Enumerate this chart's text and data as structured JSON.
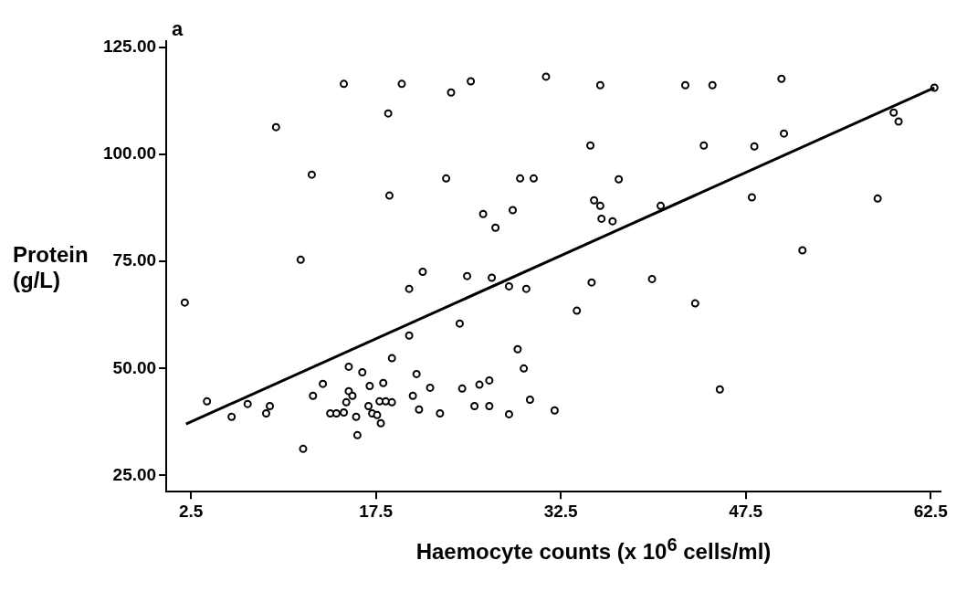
{
  "chart_data": {
    "type": "scatter",
    "xlabel": "Haemocyte counts (x 10$^{6}$  cells/ml)",
    "ylabel": "Protein (g/L)",
    "annotations": [
      "a"
    ],
    "xlim": [
      0.5,
      63.3
    ],
    "ylim": [
      21.2,
      126.5
    ],
    "xticks": [
      2.5,
      17.5,
      32.5,
      47.5,
      62.5
    ],
    "yticks": [
      {
        "value": 25,
        "label": "25.00"
      },
      {
        "value": 50,
        "label": "50.00"
      },
      {
        "value": 75,
        "label": "75.00"
      },
      {
        "value": 100,
        "label": "100.00"
      },
      {
        "value": 125,
        "label": "125.00"
      }
    ],
    "grid": false,
    "legend": false,
    "marker": "circle",
    "series": [
      {
        "color": "#000000",
        "x": [
          14.9,
          19.6,
          23.6,
          25.2,
          31.3,
          18.5,
          9.4,
          12.3,
          23.2,
          29.2,
          30.3,
          18.6,
          26.2,
          28.6,
          27.2,
          11.4,
          21.3,
          35.7,
          42.6,
          44.8,
          50.4,
          59.5,
          59.9,
          62.8,
          34.9,
          44.1,
          48.2,
          50.6,
          37.2,
          35.2,
          35.7,
          35.8,
          36.7,
          40.6,
          48.0,
          58.2,
          52.1,
          35.0,
          39.9,
          33.8,
          43.4,
          45.4,
          32.0,
          2.0,
          24.9,
          26.9,
          28.3,
          29.7,
          20.2,
          24.3,
          20.2,
          18.8,
          29.0,
          29.5,
          15.3,
          16.4,
          20.8,
          13.2,
          17.0,
          18.1,
          21.9,
          24.5,
          25.9,
          26.7,
          3.8,
          12.4,
          15.3,
          15.6,
          15.1,
          17.8,
          18.3,
          18.8,
          20.5,
          30.0,
          7.1,
          8.9,
          8.6,
          5.8,
          13.8,
          14.3,
          14.9,
          15.9,
          16.9,
          17.2,
          17.6,
          17.9,
          21.0,
          22.7,
          25.5,
          26.7,
          28.3,
          16.0,
          11.6
        ],
        "values": [
          116.5,
          116.5,
          114.5,
          117.1,
          118.2,
          109.6,
          106.4,
          95.3,
          94.4,
          94.4,
          94.4,
          90.4,
          86.1,
          87.0,
          82.9,
          75.4,
          72.6,
          116.2,
          116.2,
          116.2,
          117.7,
          109.8,
          107.7,
          115.6,
          102.1,
          102.1,
          101.9,
          104.9,
          94.2,
          89.3,
          88.0,
          85.0,
          84.4,
          88.0,
          90.0,
          89.7,
          77.6,
          70.1,
          70.9,
          63.5,
          65.2,
          45.1,
          40.2,
          65.4,
          71.6,
          71.2,
          69.2,
          68.6,
          68.6,
          60.5,
          57.7,
          52.4,
          54.5,
          50.0,
          50.4,
          49.1,
          48.7,
          46.4,
          45.9,
          46.6,
          45.5,
          45.3,
          46.2,
          47.2,
          42.3,
          43.6,
          44.7,
          43.6,
          42.1,
          42.3,
          42.3,
          42.1,
          43.6,
          42.7,
          41.7,
          41.2,
          39.5,
          38.7,
          39.5,
          39.5,
          39.7,
          38.7,
          41.2,
          39.5,
          39.1,
          37.2,
          40.4,
          39.5,
          41.2,
          41.2,
          39.3,
          34.4,
          31.2
        ]
      },
      {
        "type": "line",
        "color": "#000000",
        "x": [
          2.1,
          62.8
        ],
        "values": [
          37.0,
          115.6
        ],
        "line_style": "solid",
        "marker": "none"
      }
    ]
  }
}
